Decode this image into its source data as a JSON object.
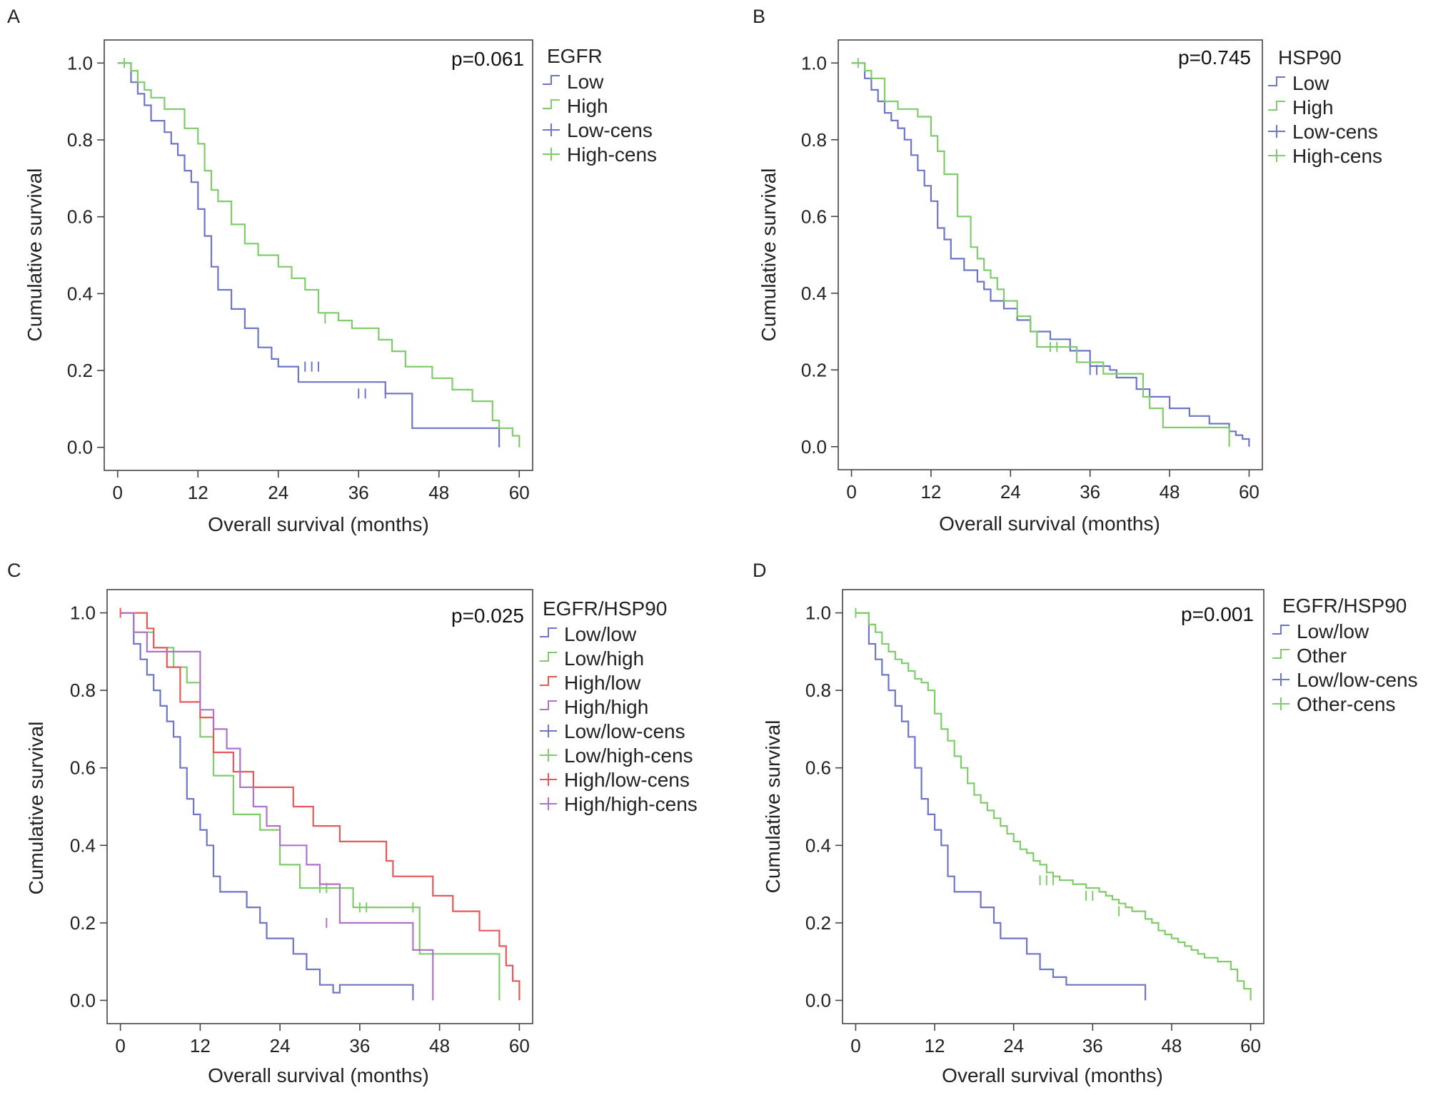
{
  "figure": {
    "panels": [
      {
        "letter": "A",
        "pvalue": "p=0.061",
        "legend_title": "EGFR",
        "legend": [
          {
            "label": "Low",
            "color": "#6d75c6",
            "kind": "step"
          },
          {
            "label": "High",
            "color": "#7fcc6a",
            "kind": "step"
          },
          {
            "label": "Low-cens",
            "color": "#6d75c6",
            "kind": "cens"
          },
          {
            "label": "High-cens",
            "color": "#7fcc6a",
            "kind": "cens"
          }
        ]
      },
      {
        "letter": "B",
        "pvalue": "p=0.745",
        "legend_title": "HSP90",
        "legend": [
          {
            "label": "Low",
            "color": "#6d75c6",
            "kind": "step"
          },
          {
            "label": "High",
            "color": "#7fcc6a",
            "kind": "step"
          },
          {
            "label": "Low-cens",
            "color": "#6d75c6",
            "kind": "cens"
          },
          {
            "label": "High-cens",
            "color": "#7fcc6a",
            "kind": "cens"
          }
        ]
      },
      {
        "letter": "C",
        "pvalue": "p=0.025",
        "legend_title": "EGFR/HSP90",
        "legend": [
          {
            "label": "Low/low",
            "color": "#6d75c6",
            "kind": "step"
          },
          {
            "label": "Low/high",
            "color": "#7fcc6a",
            "kind": "step"
          },
          {
            "label": "High/low",
            "color": "#e8585a",
            "kind": "step"
          },
          {
            "label": "High/high",
            "color": "#b072c8",
            "kind": "step"
          },
          {
            "label": "Low/low-cens",
            "color": "#6d75c6",
            "kind": "cens"
          },
          {
            "label": "Low/high-cens",
            "color": "#7fcc6a",
            "kind": "cens"
          },
          {
            "label": "High/low-cens",
            "color": "#e8585a",
            "kind": "cens"
          },
          {
            "label": "High/high-cens",
            "color": "#b072c8",
            "kind": "cens"
          }
        ]
      },
      {
        "letter": "D",
        "pvalue": "p=0.001",
        "legend_title": "EGFR/HSP90",
        "legend": [
          {
            "label": "Low/low",
            "color": "#6d75c6",
            "kind": "step"
          },
          {
            "label": "Other",
            "color": "#7fcc6a",
            "kind": "step"
          },
          {
            "label": "Low/low-cens",
            "color": "#6d75c6",
            "kind": "cens"
          },
          {
            "label": "Other-cens",
            "color": "#7fcc6a",
            "kind": "cens"
          }
        ]
      }
    ]
  },
  "chart_data": [
    {
      "type": "line",
      "title": "A",
      "xlabel": "Overall survival (months)",
      "ylabel": "Cumulative survival",
      "xlim": [
        -2,
        62
      ],
      "ylim": [
        -0.06,
        1.06
      ],
      "xticks": [
        0,
        12,
        24,
        36,
        48,
        60
      ],
      "yticks": [
        0.0,
        0.2,
        0.4,
        0.6,
        0.8,
        1.0
      ],
      "series": [
        {
          "name": "Low",
          "color": "#6d75c6",
          "x": [
            0,
            2,
            3,
            4,
            5,
            7,
            8,
            9,
            10,
            11,
            12,
            13,
            14,
            15,
            17,
            19,
            21,
            23,
            24,
            27,
            40,
            44,
            57
          ],
          "y": [
            1.0,
            0.95,
            0.92,
            0.89,
            0.85,
            0.82,
            0.79,
            0.76,
            0.72,
            0.69,
            0.62,
            0.55,
            0.47,
            0.41,
            0.36,
            0.31,
            0.26,
            0.23,
            0.21,
            0.17,
            0.14,
            0.05,
            0.0
          ],
          "censored": [
            [
              28,
              0.21
            ],
            [
              29,
              0.21
            ],
            [
              30,
              0.21
            ],
            [
              36,
              0.14
            ],
            [
              37,
              0.14
            ],
            [
              40,
              0.14
            ]
          ]
        },
        {
          "name": "High",
          "color": "#7fcc6a",
          "x": [
            0,
            2,
            3,
            4,
            5,
            7,
            10,
            12,
            13,
            14,
            15,
            17,
            19,
            21,
            24,
            26,
            28,
            30,
            33,
            35,
            39,
            41,
            43,
            47,
            50,
            53,
            56,
            57,
            59,
            60
          ],
          "y": [
            1.0,
            0.98,
            0.95,
            0.93,
            0.91,
            0.88,
            0.83,
            0.79,
            0.72,
            0.67,
            0.64,
            0.58,
            0.53,
            0.5,
            0.47,
            0.44,
            0.41,
            0.35,
            0.33,
            0.31,
            0.28,
            0.25,
            0.21,
            0.18,
            0.15,
            0.12,
            0.07,
            0.05,
            0.03,
            0.0
          ],
          "censored": [
            [
              1,
              1.0
            ],
            [
              31,
              0.335
            ]
          ]
        }
      ]
    },
    {
      "type": "line",
      "title": "B",
      "xlabel": "Overall survival (months)",
      "ylabel": "Cumulative survival",
      "xlim": [
        -2,
        62
      ],
      "ylim": [
        -0.06,
        1.06
      ],
      "xticks": [
        0,
        12,
        24,
        36,
        48,
        60
      ],
      "yticks": [
        0.0,
        0.2,
        0.4,
        0.6,
        0.8,
        1.0
      ],
      "series": [
        {
          "name": "Low",
          "color": "#6d75c6",
          "x": [
            0,
            2,
            3,
            4,
            5,
            6,
            7,
            8,
            9,
            10,
            11,
            12,
            13,
            14,
            15,
            17,
            19,
            20,
            21,
            23,
            25,
            27,
            30,
            33,
            36,
            39,
            40,
            43,
            45,
            48,
            51,
            54,
            57,
            58,
            59,
            60
          ],
          "y": [
            1.0,
            0.96,
            0.93,
            0.9,
            0.87,
            0.85,
            0.83,
            0.8,
            0.76,
            0.72,
            0.68,
            0.64,
            0.57,
            0.54,
            0.49,
            0.46,
            0.43,
            0.41,
            0.38,
            0.36,
            0.33,
            0.3,
            0.28,
            0.25,
            0.21,
            0.2,
            0.18,
            0.15,
            0.13,
            0.1,
            0.08,
            0.06,
            0.04,
            0.03,
            0.02,
            0.0
          ],
          "censored": [
            [
              36,
              0.2
            ],
            [
              37,
              0.2
            ]
          ]
        },
        {
          "name": "High",
          "color": "#7fcc6a",
          "x": [
            0,
            2,
            3,
            5,
            7,
            10,
            12,
            13,
            14,
            16,
            18,
            19,
            20,
            21,
            22,
            23,
            25,
            27,
            28,
            34,
            38,
            44,
            45,
            47,
            57
          ],
          "y": [
            1.0,
            0.98,
            0.96,
            0.9,
            0.88,
            0.86,
            0.81,
            0.77,
            0.71,
            0.6,
            0.52,
            0.49,
            0.46,
            0.44,
            0.41,
            0.38,
            0.34,
            0.3,
            0.26,
            0.22,
            0.19,
            0.13,
            0.1,
            0.05,
            0.0
          ],
          "censored": [
            [
              1,
              1.0
            ],
            [
              30,
              0.26
            ],
            [
              31,
              0.26
            ]
          ]
        }
      ]
    },
    {
      "type": "line",
      "title": "C",
      "xlabel": "Overall survival (months)",
      "ylabel": "Cumulative survival",
      "xlim": [
        -2,
        62
      ],
      "ylim": [
        -0.06,
        1.06
      ],
      "xticks": [
        0,
        12,
        24,
        36,
        48,
        60
      ],
      "yticks": [
        0.0,
        0.2,
        0.4,
        0.6,
        0.8,
        1.0
      ],
      "series": [
        {
          "name": "Low/low",
          "color": "#6d75c6",
          "x": [
            0,
            2,
            3,
            4,
            5,
            6,
            7,
            8,
            9,
            10,
            11,
            12,
            13,
            14,
            15,
            19,
            21,
            22,
            26,
            28,
            30,
            32,
            33,
            44
          ],
          "y": [
            1.0,
            0.92,
            0.88,
            0.84,
            0.8,
            0.76,
            0.72,
            0.68,
            0.6,
            0.52,
            0.48,
            0.44,
            0.4,
            0.32,
            0.28,
            0.24,
            0.2,
            0.16,
            0.12,
            0.08,
            0.04,
            0.02,
            0.04,
            0.0
          ],
          "censored": []
        },
        {
          "name": "Low/high",
          "color": "#7fcc6a",
          "x": [
            0,
            2,
            5,
            8,
            10,
            12,
            14,
            17,
            21,
            24,
            27,
            31,
            35,
            45,
            57
          ],
          "y": [
            1.0,
            0.95,
            0.91,
            0.86,
            0.82,
            0.68,
            0.58,
            0.48,
            0.44,
            0.35,
            0.29,
            0.29,
            0.24,
            0.12,
            0.0
          ],
          "censored": [
            [
              30,
              0.29
            ],
            [
              31,
              0.29
            ],
            [
              36,
              0.24
            ],
            [
              37,
              0.24
            ],
            [
              44,
              0.24
            ]
          ]
        },
        {
          "name": "High/low",
          "color": "#e8585a",
          "x": [
            0,
            4,
            5,
            7,
            9,
            12,
            14,
            17,
            20,
            26,
            29,
            33,
            40,
            41,
            47,
            50,
            54,
            57,
            58,
            59,
            60
          ],
          "y": [
            1.0,
            0.96,
            0.91,
            0.86,
            0.77,
            0.73,
            0.64,
            0.59,
            0.55,
            0.5,
            0.45,
            0.41,
            0.36,
            0.32,
            0.27,
            0.23,
            0.18,
            0.14,
            0.09,
            0.05,
            0.0
          ],
          "censored": [
            [
              0,
              1.0
            ]
          ]
        },
        {
          "name": "High/high",
          "color": "#b072c8",
          "x": [
            0,
            2,
            4,
            8,
            12,
            14,
            16,
            18,
            20,
            22,
            24,
            26,
            28,
            30,
            33,
            44,
            47
          ],
          "y": [
            1.0,
            0.95,
            0.9,
            0.9,
            0.75,
            0.7,
            0.65,
            0.55,
            0.5,
            0.45,
            0.4,
            0.4,
            0.35,
            0.3,
            0.2,
            0.13,
            0.0
          ],
          "censored": [
            [
              31,
              0.2
            ]
          ]
        }
      ]
    },
    {
      "type": "line",
      "title": "D",
      "xlabel": "Overall survival (months)",
      "ylabel": "Cumulative survival",
      "xlim": [
        -2,
        62
      ],
      "ylim": [
        -0.06,
        1.06
      ],
      "xticks": [
        0,
        12,
        24,
        36,
        48,
        60
      ],
      "yticks": [
        0.0,
        0.2,
        0.4,
        0.6,
        0.8,
        1.0
      ],
      "series": [
        {
          "name": "Low/low",
          "color": "#6d75c6",
          "x": [
            0,
            2,
            3,
            4,
            5,
            6,
            7,
            8,
            9,
            10,
            11,
            12,
            13,
            14,
            15,
            19,
            21,
            22,
            26,
            28,
            30,
            32,
            33,
            44
          ],
          "y": [
            1.0,
            0.92,
            0.88,
            0.84,
            0.8,
            0.76,
            0.72,
            0.68,
            0.6,
            0.52,
            0.48,
            0.44,
            0.4,
            0.32,
            0.28,
            0.24,
            0.2,
            0.16,
            0.12,
            0.08,
            0.06,
            0.04,
            0.04,
            0.0
          ],
          "censored": []
        },
        {
          "name": "Other",
          "color": "#7fcc6a",
          "x": [
            0,
            2,
            3,
            4,
            5,
            6,
            7,
            8,
            9,
            10,
            11,
            12,
            13,
            14,
            15,
            16,
            17,
            18,
            19,
            20,
            21,
            22,
            23,
            24,
            25,
            26,
            27,
            28,
            29,
            30,
            31,
            33,
            35,
            37,
            38,
            39,
            40,
            41,
            42,
            44,
            45,
            46,
            47,
            48,
            49,
            50,
            51,
            52,
            53,
            55,
            57,
            58,
            59,
            60
          ],
          "y": [
            1.0,
            0.97,
            0.95,
            0.92,
            0.9,
            0.88,
            0.87,
            0.85,
            0.83,
            0.82,
            0.8,
            0.74,
            0.7,
            0.67,
            0.63,
            0.6,
            0.56,
            0.53,
            0.51,
            0.49,
            0.47,
            0.45,
            0.43,
            0.41,
            0.39,
            0.38,
            0.36,
            0.35,
            0.33,
            0.32,
            0.31,
            0.3,
            0.29,
            0.28,
            0.27,
            0.26,
            0.25,
            0.24,
            0.23,
            0.21,
            0.2,
            0.18,
            0.17,
            0.16,
            0.15,
            0.14,
            0.13,
            0.12,
            0.11,
            0.1,
            0.08,
            0.05,
            0.03,
            0.0
          ],
          "censored": [
            [
              0,
              1.0
            ],
            [
              28,
              0.31
            ],
            [
              29,
              0.31
            ],
            [
              30,
              0.31
            ],
            [
              35,
              0.27
            ],
            [
              36,
              0.27
            ],
            [
              40,
              0.23
            ]
          ]
        }
      ]
    }
  ]
}
